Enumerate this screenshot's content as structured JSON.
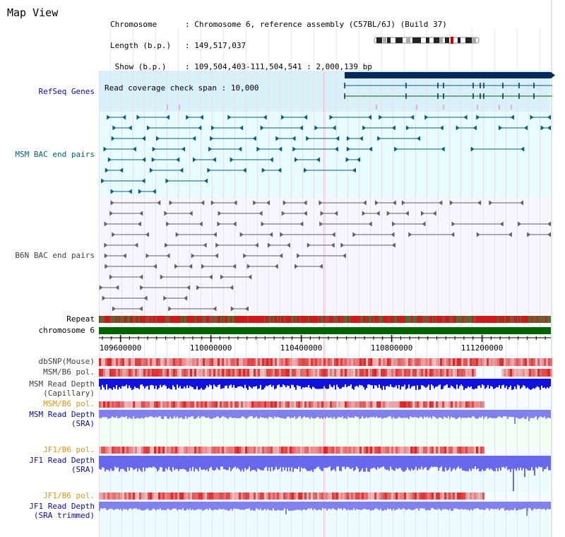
{
  "page": {
    "title": "Map View"
  },
  "info": {
    "chromosome_label": "Chromosome      ",
    "chromosome_value": ": Chromosome 6, reference assembly (C57BL/6J) (Build 37)",
    "length_label": "Length (b.p.)   ",
    "length_value": ": 149,517,037",
    "show_label": " Show (b.p.)    ",
    "show_value": ": 109,504,403-111,504,541 : 2,000,139 bp",
    "coverage_label": "Read coverage check span ",
    "coverage_value": ": 10,000"
  },
  "tracks": {
    "refseq": "RefSeq Genes",
    "msm_bac": "MSM BAC end pairs",
    "b6n_bac": "B6N BAC end pairs",
    "repeat": "Repeat",
    "chromosome": "chromosome 6",
    "dbsnp": "dbSNP(Mouse)",
    "msm_b6_pol_1": "MSM/B6 pol.",
    "msm_depth_cap_1": "MSM Read Depth",
    "msm_depth_cap_2": "(Capillary)",
    "msm_b6_pol_2": "MSM/B6 pol.",
    "msm_depth_sra_1": "MSM Read Depth",
    "msm_depth_sra_2": "(SRA)",
    "jf1_b6_pol_1": "JF1/B6 pol.",
    "jf1_depth_sra_1": "JF1 Read Depth",
    "jf1_depth_sra_2": "(SRA)",
    "jf1_b6_pol_2": "JF1/B6 pol.",
    "jf1_depth_trim_1": "JF1 Read Depth",
    "jf1_depth_trim_2": "(SRA trimmed)"
  },
  "axis": {
    "ticks": [
      {
        "label": "109600000",
        "value": 109600000
      },
      {
        "label": "110000000",
        "value": 110000000
      },
      {
        "label": "110400000",
        "value": 110400000
      },
      {
        "label": "110800000",
        "value": 110800000
      },
      {
        "label": "111200000",
        "value": 111200000
      }
    ],
    "start": 109504403,
    "end": 111504541
  },
  "colors": {
    "refseq_bg": "#d8f0fa",
    "msm_bac": "#00607a",
    "b6n_bac": "#606060",
    "chromosome": "#006400",
    "depth_blue": "#1010e0",
    "depth_light": "#8080ee",
    "pol_red": "#e02020",
    "cyan_bg": "#e8fbff"
  }
}
